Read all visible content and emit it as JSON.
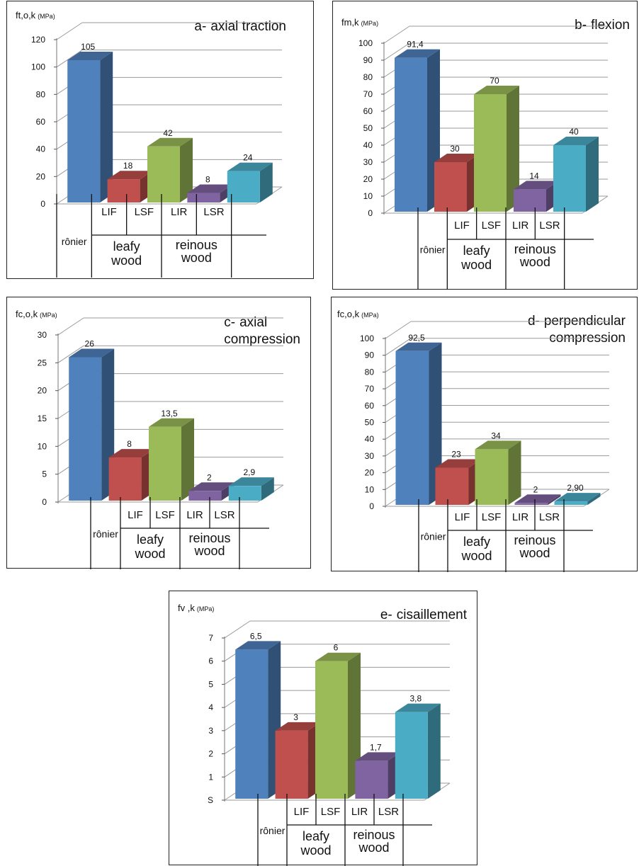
{
  "chart_data": [
    {
      "id": "a",
      "type": "bar",
      "title_label": "a-",
      "title_lines": [
        "axial traction"
      ],
      "ylabel": "ft,o,k",
      "yunit": "(MPa)",
      "ylim": [
        0,
        120
      ],
      "yticks": [
        "0",
        "20",
        "40",
        "60",
        "80",
        "100",
        "120"
      ],
      "categories": [
        "rônier",
        "LIF",
        "LSF",
        "LIR",
        "LSR"
      ],
      "values": [
        105,
        18,
        42,
        8,
        24
      ],
      "value_labels": [
        "105",
        "18",
        "42",
        "8",
        "24"
      ],
      "groups": [
        "leafy wood",
        "reinous wood"
      ],
      "grid": true
    },
    {
      "id": "b",
      "type": "bar",
      "title_label": "b-",
      "title_lines": [
        "flexion"
      ],
      "ylabel": "fm,k",
      "yunit": "(MPa)",
      "ylim": [
        0,
        100
      ],
      "yticks": [
        "0",
        "10",
        "20",
        "30",
        "40",
        "50",
        "60",
        "70",
        "80",
        "90",
        "100"
      ],
      "categories": [
        "rônier",
        "LIF",
        "LSF",
        "LIR",
        "LSR"
      ],
      "values": [
        91.4,
        30,
        70,
        14,
        40
      ],
      "value_labels": [
        "91,4",
        "30",
        "70",
        "14",
        "40"
      ],
      "groups": [
        "leafy wood",
        "reinous wood"
      ],
      "grid": true
    },
    {
      "id": "c",
      "type": "bar",
      "title_label": "c-",
      "title_lines": [
        "axial",
        "compression"
      ],
      "ylabel": "fc,o,k",
      "yunit": "(MPa)",
      "ylim": [
        0,
        30
      ],
      "yticks": [
        "0",
        "5",
        "10",
        "15",
        "20",
        "25",
        "30"
      ],
      "categories": [
        "rônier",
        "LIF",
        "LSF",
        "LIR",
        "LSR"
      ],
      "values": [
        26,
        8,
        13.5,
        2,
        2.9
      ],
      "value_labels": [
        "26",
        "8",
        "13,5",
        "2",
        "2,9"
      ],
      "groups": [
        "leafy wood",
        "reinous wood"
      ],
      "grid": true
    },
    {
      "id": "d",
      "type": "bar",
      "title_label": "d-",
      "title_lines": [
        "perpendicular",
        "compression"
      ],
      "ylabel": "fc,o,k",
      "yunit": "(MPa)",
      "ylim": [
        0,
        100
      ],
      "yticks": [
        "0",
        "10",
        "20",
        "30",
        "40",
        "50",
        "60",
        "70",
        "80",
        "90",
        "100"
      ],
      "categories": [
        "rônier",
        "LIF",
        "LSF",
        "LIR",
        "LSR"
      ],
      "values": [
        92.5,
        23,
        34,
        2,
        2.9
      ],
      "value_labels": [
        "92,5",
        "23",
        "34",
        "2",
        "2,90"
      ],
      "groups": [
        "leafy wood",
        "reinous wood"
      ],
      "grid": true
    },
    {
      "id": "e",
      "type": "bar",
      "title_label": "e-",
      "title_lines": [
        "cisaillement"
      ],
      "ylabel": "fv ,k",
      "yunit": "(MPa)",
      "ylim": [
        0,
        7
      ],
      "yticks": [
        "S",
        "1",
        "2",
        "3",
        "4",
        "5",
        "6",
        "7"
      ],
      "categories": [
        "rônier",
        "LIF",
        "LSF",
        "LIR",
        "LSR"
      ],
      "values": [
        6.5,
        3,
        6,
        1.7,
        3.8
      ],
      "value_labels": [
        "6,5",
        "3",
        "6",
        "1,7",
        "3,8"
      ],
      "groups": [
        "leafy wood",
        "reinous wood"
      ],
      "grid": true
    }
  ],
  "colors": {
    "series": [
      "#4F81BD",
      "#C0504D",
      "#9BBB59",
      "#8064A2",
      "#4BACC6"
    ],
    "grid": "#9a9a9a",
    "text": "#111111"
  }
}
